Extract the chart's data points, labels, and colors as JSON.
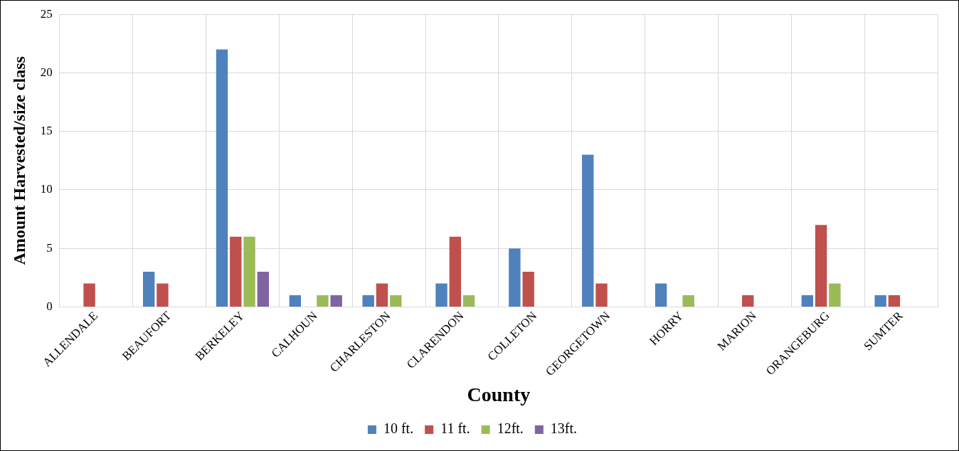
{
  "chart_data": {
    "type": "bar",
    "xlabel": "County",
    "ylabel": "Amount Harvested/size class",
    "categories": [
      "ALLENDALE",
      "BEAUFORT",
      "BERKELEY",
      "CALHOUN",
      "CHARLESTON",
      "CLARENDON",
      "COLLETON",
      "GEORGETOWN",
      "HORRY",
      "MARION",
      "ORANGEBURG",
      "SUMTER"
    ],
    "series": [
      {
        "name": "10 ft.",
        "color": "#4f81bd",
        "values": [
          0,
          3,
          22,
          1,
          1,
          2,
          5,
          13,
          2,
          0,
          1,
          1
        ]
      },
      {
        "name": "11 ft.",
        "color": "#c0504d",
        "values": [
          2,
          2,
          6,
          0,
          2,
          6,
          3,
          2,
          0,
          1,
          7,
          1
        ]
      },
      {
        "name": "12ft.",
        "color": "#9bbb59",
        "values": [
          0,
          0,
          6,
          1,
          1,
          1,
          0,
          0,
          1,
          0,
          2,
          0
        ]
      },
      {
        "name": "13ft.",
        "color": "#8064a2",
        "values": [
          0,
          0,
          3,
          1,
          0,
          0,
          0,
          0,
          0,
          0,
          0,
          0
        ]
      }
    ],
    "ylim": [
      0,
      25
    ],
    "yticks": [
      0,
      5,
      10,
      15,
      20,
      25
    ],
    "grid": true,
    "legend": "bottom"
  }
}
